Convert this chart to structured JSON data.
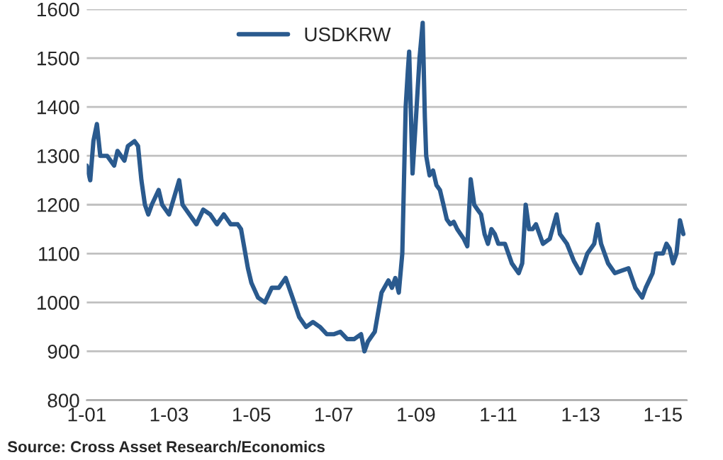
{
  "chart_data": {
    "type": "line",
    "x": [
      "2001-01",
      "2001-02",
      "2001-03",
      "2001-04",
      "2001-05",
      "2001-07",
      "2001-09",
      "2001-10",
      "2001-12",
      "2002-01",
      "2002-03",
      "2002-04",
      "2002-05",
      "2002-06",
      "2002-07",
      "2002-08",
      "2002-10",
      "2002-11",
      "2003-01",
      "2003-04",
      "2003-05",
      "2003-07",
      "2003-09",
      "2003-11",
      "2004-01",
      "2004-03",
      "2004-05",
      "2004-07",
      "2004-09",
      "2004-10",
      "2004-12",
      "2005-01",
      "2005-03",
      "2005-05",
      "2005-07",
      "2005-09",
      "2005-11",
      "2006-01",
      "2006-03",
      "2006-05",
      "2006-07",
      "2006-09",
      "2006-11",
      "2007-01",
      "2007-03",
      "2007-05",
      "2007-07",
      "2007-09",
      "2007-10",
      "2007-11",
      "2008-01",
      "2008-03",
      "2008-05",
      "2008-06",
      "2008-07",
      "2008-08",
      "2008-09",
      "2008-10",
      "2008-10-20",
      "2008-11",
      "2008-12",
      "2009-01",
      "2009-02",
      "2009-03",
      "2009-03-20",
      "2009-04",
      "2009-05",
      "2009-06",
      "2009-07",
      "2009-08",
      "2009-09",
      "2009-10",
      "2009-11",
      "2009-12",
      "2010-01",
      "2010-03",
      "2010-04",
      "2010-05",
      "2010-06",
      "2010-07",
      "2010-08",
      "2010-09",
      "2010-10",
      "2010-11",
      "2010-12",
      "2011-01",
      "2011-03",
      "2011-05",
      "2011-07",
      "2011-08",
      "2011-09",
      "2011-10",
      "2011-11",
      "2011-12",
      "2012-02",
      "2012-04",
      "2012-06",
      "2012-07",
      "2012-09",
      "2012-11",
      "2013-01",
      "2013-03",
      "2013-05",
      "2013-06",
      "2013-07",
      "2013-09",
      "2013-11",
      "2014-01",
      "2014-03",
      "2014-05",
      "2014-07",
      "2014-08",
      "2014-10",
      "2014-11",
      "2015-01",
      "2015-02",
      "2015-03",
      "2015-04",
      "2015-05",
      "2015-06",
      "2015-07"
    ],
    "series": [
      {
        "name": "USDKRW",
        "color": "#2a5a8e",
        "values": [
          1280,
          1250,
          1330,
          1365,
          1300,
          1300,
          1280,
          1310,
          1290,
          1320,
          1330,
          1320,
          1250,
          1200,
          1180,
          1200,
          1230,
          1200,
          1180,
          1250,
          1200,
          1180,
          1160,
          1190,
          1180,
          1160,
          1180,
          1160,
          1160,
          1150,
          1070,
          1040,
          1010,
          1000,
          1030,
          1030,
          1050,
          1010,
          970,
          950,
          960,
          950,
          935,
          935,
          940,
          925,
          925,
          935,
          900,
          920,
          940,
          1020,
          1045,
          1030,
          1050,
          1020,
          1100,
          1400,
          1473,
          1513,
          1264,
          1380,
          1500,
          1572,
          1380,
          1300,
          1260,
          1270,
          1240,
          1230,
          1200,
          1170,
          1160,
          1165,
          1150,
          1130,
          1115,
          1252,
          1200,
          1190,
          1180,
          1140,
          1120,
          1150,
          1140,
          1120,
          1120,
          1080,
          1060,
          1080,
          1200,
          1150,
          1150,
          1160,
          1120,
          1130,
          1180,
          1140,
          1120,
          1085,
          1060,
          1100,
          1120,
          1160,
          1120,
          1080,
          1060,
          1065,
          1070,
          1030,
          1010,
          1030,
          1060,
          1100,
          1100,
          1120,
          1110,
          1080,
          1100,
          1168,
          1140
        ]
      }
    ],
    "xlim": [
      "2001-01",
      "2015-08"
    ],
    "xticks": [
      {
        "value": "2001-01",
        "label": "1-01"
      },
      {
        "value": "2003-01",
        "label": "1-03"
      },
      {
        "value": "2005-01",
        "label": "1-05"
      },
      {
        "value": "2007-01",
        "label": "1-07"
      },
      {
        "value": "2009-01",
        "label": "1-09"
      },
      {
        "value": "2011-01",
        "label": "1-11"
      },
      {
        "value": "2013-01",
        "label": "1-13"
      },
      {
        "value": "2015-01",
        "label": "1-15"
      }
    ],
    "ylim": [
      800,
      1600
    ],
    "yticks": [
      800,
      900,
      1000,
      1100,
      1200,
      1300,
      1400,
      1500,
      1600
    ],
    "grid": "y",
    "legend": "top",
    "annotations": [
      "Source: Cross Asset Research/Economics"
    ]
  }
}
